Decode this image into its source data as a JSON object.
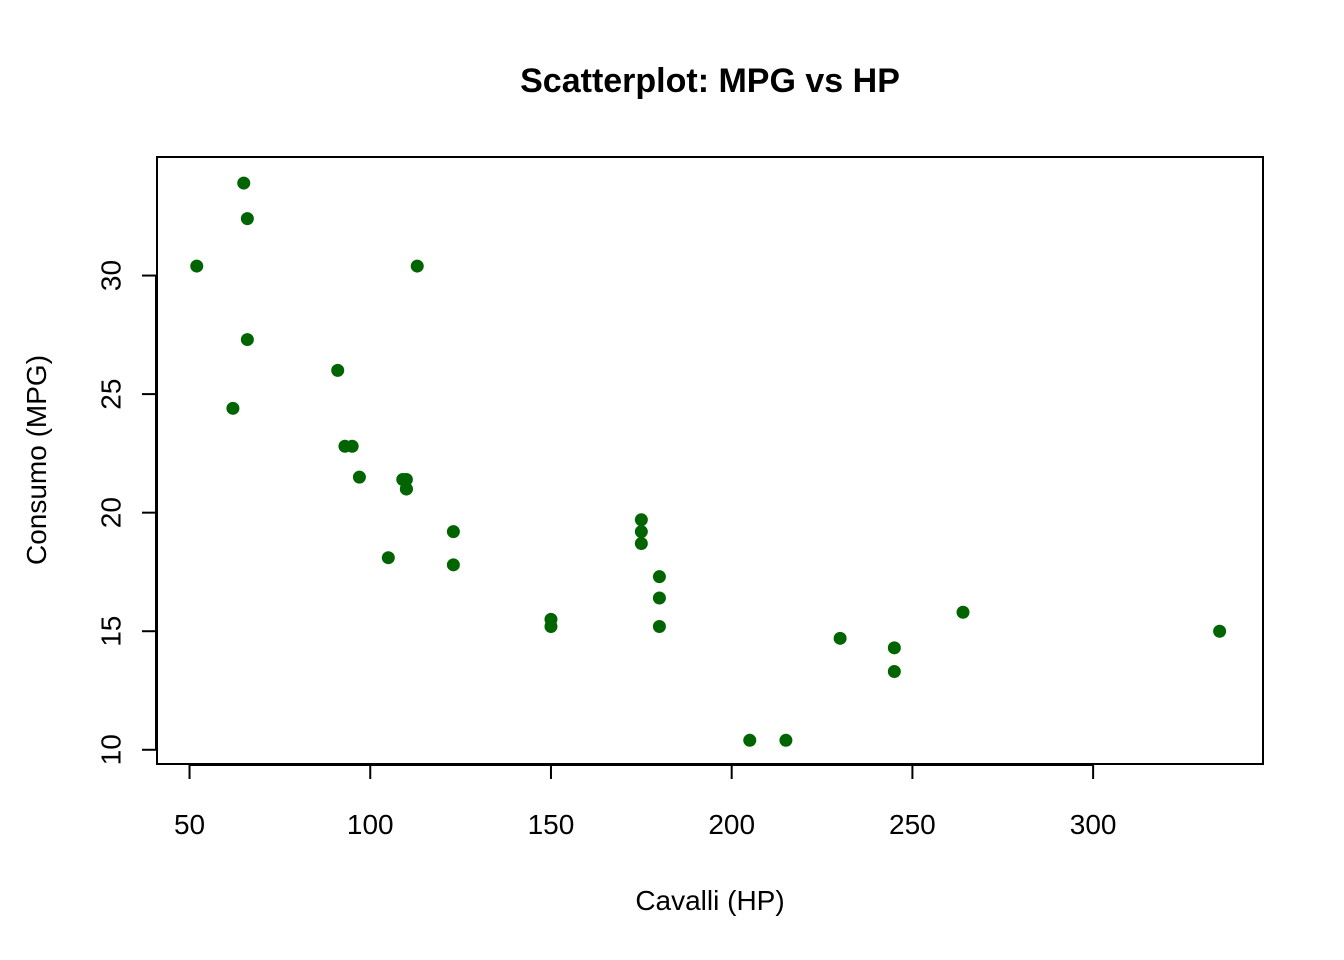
{
  "chart_data": {
    "type": "scatter",
    "title": "Scatterplot: MPG vs HP",
    "xlabel": "Cavalli (HP)",
    "ylabel": "Consumo (MPG)",
    "xlim": [
      41,
      347
    ],
    "ylim": [
      9.4,
      35.0
    ],
    "x_ticks": [
      50,
      100,
      150,
      200,
      250,
      300
    ],
    "y_ticks": [
      10,
      15,
      20,
      25,
      30
    ],
    "grid": false,
    "legend": "none",
    "point_color": "#006400",
    "points": [
      {
        "x": 110,
        "y": 21.0
      },
      {
        "x": 110,
        "y": 21.0
      },
      {
        "x": 93,
        "y": 22.8
      },
      {
        "x": 110,
        "y": 21.4
      },
      {
        "x": 175,
        "y": 18.7
      },
      {
        "x": 105,
        "y": 18.1
      },
      {
        "x": 245,
        "y": 14.3
      },
      {
        "x": 62,
        "y": 24.4
      },
      {
        "x": 95,
        "y": 22.8
      },
      {
        "x": 123,
        "y": 19.2
      },
      {
        "x": 123,
        "y": 17.8
      },
      {
        "x": 180,
        "y": 16.4
      },
      {
        "x": 180,
        "y": 17.3
      },
      {
        "x": 180,
        "y": 15.2
      },
      {
        "x": 205,
        "y": 10.4
      },
      {
        "x": 215,
        "y": 10.4
      },
      {
        "x": 230,
        "y": 14.7
      },
      {
        "x": 66,
        "y": 32.4
      },
      {
        "x": 52,
        "y": 30.4
      },
      {
        "x": 65,
        "y": 33.9
      },
      {
        "x": 97,
        "y": 21.5
      },
      {
        "x": 150,
        "y": 15.5
      },
      {
        "x": 150,
        "y": 15.2
      },
      {
        "x": 245,
        "y": 13.3
      },
      {
        "x": 175,
        "y": 19.2
      },
      {
        "x": 66,
        "y": 27.3
      },
      {
        "x": 91,
        "y": 26.0
      },
      {
        "x": 113,
        "y": 30.4
      },
      {
        "x": 264,
        "y": 15.8
      },
      {
        "x": 175,
        "y": 19.7
      },
      {
        "x": 335,
        "y": 15.0
      },
      {
        "x": 109,
        "y": 21.4
      }
    ]
  }
}
